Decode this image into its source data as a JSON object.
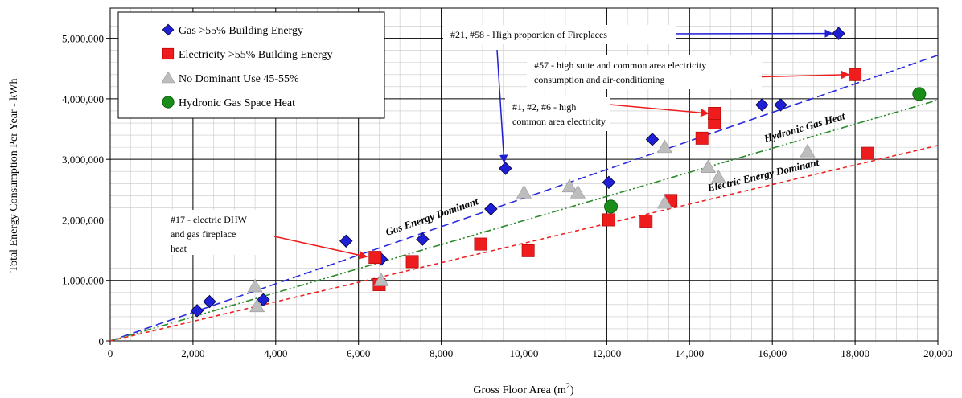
{
  "chart_data": {
    "type": "scatter",
    "xlabel": "Gross Floor Area (m²)",
    "ylabel": "Total Energy Consumption Per Year - kWh",
    "xlim": [
      0,
      20000
    ],
    "ylim": [
      0,
      5500000
    ],
    "x_ticks": [
      0,
      2000,
      4000,
      6000,
      8000,
      10000,
      12000,
      14000,
      16000,
      18000,
      20000
    ],
    "x_tick_labels": [
      "0",
      "2,000",
      "4,000",
      "6,000",
      "8,000",
      "10,000",
      "12,000",
      "14,000",
      "16,000",
      "18,000",
      "20,000"
    ],
    "y_ticks": [
      0,
      1000000,
      2000000,
      3000000,
      4000000,
      5000000
    ],
    "y_tick_labels": [
      "0",
      "1,000,000",
      "2,000,000",
      "3,000,000",
      "4,000,000",
      "5,000,000"
    ],
    "grid": true,
    "legend_position": "top-left",
    "series": [
      {
        "name": "Gas >55% Building Energy",
        "marker": "diamond",
        "color": "#1f1fd6",
        "points": [
          [
            2100,
            500000
          ],
          [
            2400,
            650000
          ],
          [
            3700,
            680000
          ],
          [
            5700,
            1650000
          ],
          [
            6550,
            1350000
          ],
          [
            7550,
            1680000
          ],
          [
            9200,
            2180000
          ],
          [
            9550,
            2850000
          ],
          [
            12050,
            2620000
          ],
          [
            13100,
            3330000
          ],
          [
            15750,
            3900000
          ],
          [
            16200,
            3900000
          ],
          [
            17600,
            5080000
          ]
        ]
      },
      {
        "name": "Electricity >55% Building Energy",
        "marker": "square",
        "color": "#ee1c1c",
        "points": [
          [
            6400,
            1380000
          ],
          [
            6500,
            930000
          ],
          [
            7300,
            1310000
          ],
          [
            8950,
            1600000
          ],
          [
            10100,
            1490000
          ],
          [
            12050,
            2000000
          ],
          [
            12950,
            1980000
          ],
          [
            13550,
            2320000
          ],
          [
            14300,
            3350000
          ],
          [
            14600,
            3600000
          ],
          [
            14600,
            3760000
          ],
          [
            18000,
            4400000
          ],
          [
            18300,
            3100000
          ]
        ]
      },
      {
        "name": "No Dominant Use 45-55%",
        "marker": "triangle",
        "color": "#bdbdbd",
        "points": [
          [
            3500,
            900000
          ],
          [
            3550,
            570000
          ],
          [
            6550,
            1000000
          ],
          [
            10000,
            2450000
          ],
          [
            11100,
            2550000
          ],
          [
            11300,
            2450000
          ],
          [
            13400,
            3200000
          ],
          [
            13400,
            2280000
          ],
          [
            14450,
            2870000
          ],
          [
            14700,
            2700000
          ],
          [
            16850,
            3130000
          ]
        ]
      },
      {
        "name": "Hydronic Gas Space Heat",
        "marker": "circle",
        "color": "#1a8c1a",
        "points": [
          [
            12100,
            2220000
          ],
          [
            19550,
            4080000
          ]
        ]
      }
    ],
    "trend_lines": [
      {
        "label": "Gas Energy Dominant",
        "color": "#2a2ae0",
        "dash": "10,5",
        "x": [
          0,
          20000
        ],
        "y": [
          0,
          4720000
        ]
      },
      {
        "label": "Hydronic Gas Heat",
        "color": "#2a8a2a",
        "dash": "9,3,2,3,2,3",
        "x": [
          0,
          20000
        ],
        "y": [
          0,
          3980000
        ]
      },
      {
        "label": "Electric Energy Dominant",
        "color": "#ee2222",
        "dash": "5,4",
        "x": [
          0,
          20000
        ],
        "y": [
          0,
          3230000
        ]
      }
    ],
    "annotations": [
      {
        "lines": [
          "#21, #58 - High proportion of Fireplaces"
        ]
      },
      {
        "lines": [
          "#57 - high suite and common area electricity",
          "consumption and air-conditioning"
        ]
      },
      {
        "lines": [
          "#1, #2, #6 - high",
          "common area electricity"
        ]
      },
      {
        "lines": [
          "#17 - electric DHW",
          "and gas fireplace",
          "heat"
        ]
      }
    ]
  }
}
